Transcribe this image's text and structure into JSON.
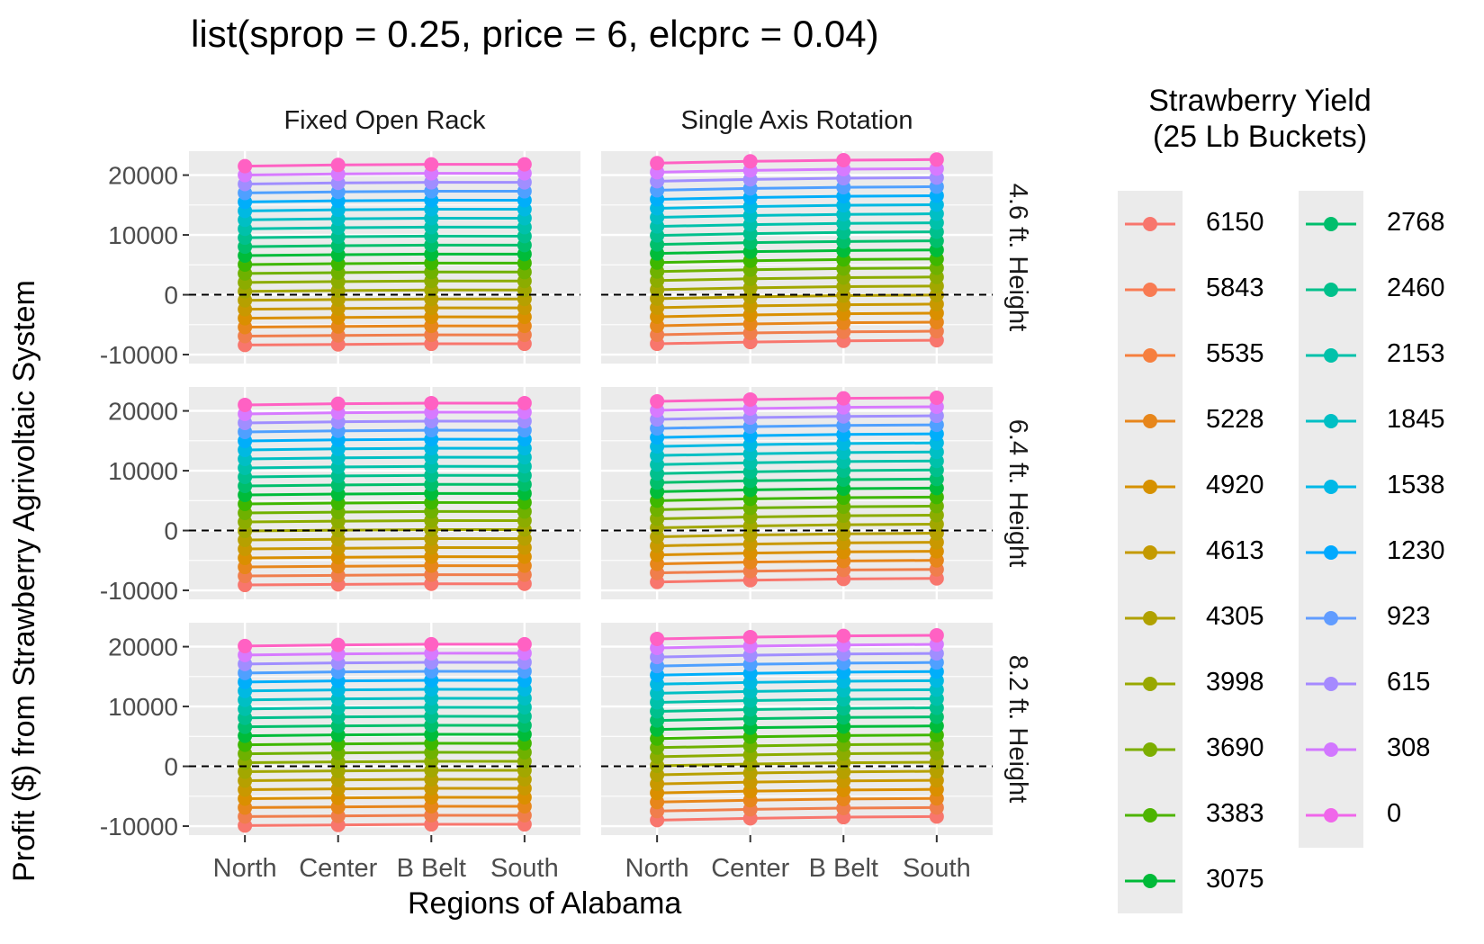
{
  "chart_data": {
    "type": "line",
    "title": "list(sprop = 0.25, price = 6, elcprc = 0.04)",
    "xlabel": "Regions of Alabama",
    "ylabel": "Profit ($) from Strawberry Agrivoltaic System",
    "categories": [
      "North",
      "Center",
      "B Belt",
      "South"
    ],
    "ylim": [
      -11500,
      24000
    ],
    "y_ticks": [
      -10000,
      0,
      10000,
      20000
    ],
    "reference_line": {
      "y": 0,
      "style": "dashed"
    },
    "grid": true,
    "legend": {
      "title_lines": [
        "Strawberry Yield",
        "(25 Lb Buckets)"
      ],
      "placement": "right",
      "entries": [
        {
          "label": "6150",
          "color": "#F8766D"
        },
        {
          "label": "5843",
          "color": "#F87B53"
        },
        {
          "label": "5535",
          "color": "#F67F3E"
        },
        {
          "label": "5228",
          "color": "#E7861B"
        },
        {
          "label": "4920",
          "color": "#D69100"
        },
        {
          "label": "4613",
          "color": "#C49A00"
        },
        {
          "label": "4305",
          "color": "#B0A100"
        },
        {
          "label": "3998",
          "color": "#99A800"
        },
        {
          "label": "3690",
          "color": "#7CAE00"
        },
        {
          "label": "3383",
          "color": "#4DB400"
        },
        {
          "label": "3075",
          "color": "#00BA38"
        },
        {
          "label": "2768",
          "color": "#00BE6C"
        },
        {
          "label": "2460",
          "color": "#00C08B"
        },
        {
          "label": "2153",
          "color": "#00C1AA"
        },
        {
          "label": "1845",
          "color": "#00BFC4"
        },
        {
          "label": "1538",
          "color": "#00B8E7"
        },
        {
          "label": "1230",
          "color": "#00A9FF"
        },
        {
          "label": "923",
          "color": "#619CFF"
        },
        {
          "label": "615",
          "color": "#A58AFF"
        },
        {
          "label": "308",
          "color": "#D277FF"
        },
        {
          "label": "0",
          "color": "#F066EA"
        }
      ]
    },
    "facet_cols": [
      "Fixed Open Rack",
      "Single Axis Rotation"
    ],
    "facet_rows": [
      "4.6 ft. Height",
      "6.4 ft. Height",
      "8.2 ft. Height"
    ],
    "yield_values": [
      0,
      308,
      615,
      923,
      1230,
      1538,
      1845,
      2153,
      2460,
      2768,
      3075,
      3383,
      3690,
      3998,
      4305,
      4613,
      4920,
      5228,
      5535,
      5843,
      6150
    ],
    "series_colors": [
      "#F8766D",
      "#F07E4C",
      "#E7861B",
      "#DA8F00",
      "#C99800",
      "#B6A000",
      "#A2A700",
      "#8CAC00",
      "#6FB100",
      "#3EB700",
      "#00BC3A",
      "#00BF6B",
      "#00C08D",
      "#00C1AA",
      "#00BFC4",
      "#00B9E2",
      "#00AEFA",
      "#4FA0FF",
      "#A08EFF",
      "#D77AFF",
      "#FF61C3"
    ],
    "panels": [
      {
        "col": "Fixed Open Rack",
        "row": "4.6 ft. Height",
        "series_low": {
          "values": [
            -8400,
            -8300,
            -8200,
            -8200
          ]
        },
        "series_high": {
          "values": [
            21500,
            21700,
            21800,
            21800
          ]
        }
      },
      {
        "col": "Single Axis Rotation",
        "row": "4.6 ft. Height",
        "series_low": {
          "values": [
            -8200,
            -7900,
            -7700,
            -7600
          ]
        },
        "series_high": {
          "values": [
            22000,
            22300,
            22500,
            22600
          ]
        }
      },
      {
        "col": "Fixed Open Rack",
        "row": "6.4 ft. Height",
        "series_low": {
          "values": [
            -9100,
            -9000,
            -8900,
            -8900
          ]
        },
        "series_high": {
          "values": [
            21000,
            21200,
            21300,
            21300
          ]
        }
      },
      {
        "col": "Single Axis Rotation",
        "row": "6.4 ft. Height",
        "series_low": {
          "values": [
            -8600,
            -8300,
            -8100,
            -8000
          ]
        },
        "series_high": {
          "values": [
            21600,
            21900,
            22100,
            22200
          ]
        }
      },
      {
        "col": "Fixed Open Rack",
        "row": "8.2 ft. Height",
        "series_low": {
          "values": [
            -9900,
            -9800,
            -9700,
            -9700
          ]
        },
        "series_high": {
          "values": [
            20100,
            20300,
            20400,
            20400
          ]
        }
      },
      {
        "col": "Single Axis Rotation",
        "row": "8.2 ft. Height",
        "series_low": {
          "values": [
            -9000,
            -8700,
            -8500,
            -8400
          ]
        },
        "series_high": {
          "values": [
            21300,
            21600,
            21800,
            21900
          ]
        }
      }
    ]
  }
}
